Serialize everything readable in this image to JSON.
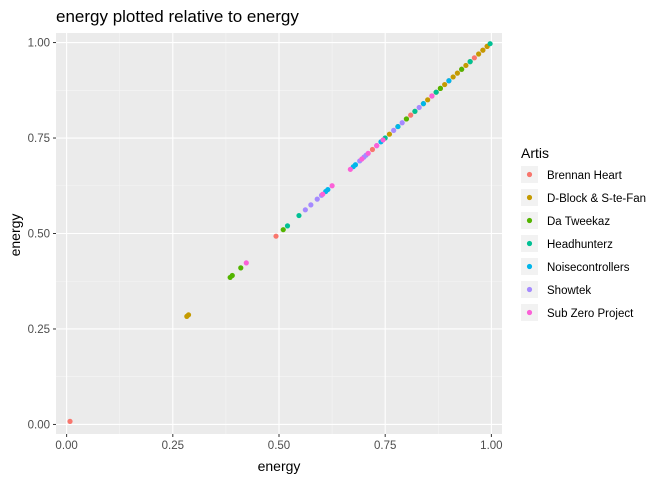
{
  "chart_data": {
    "type": "scatter",
    "title": "energy plotted relative to energy",
    "xlabel": "energy",
    "ylabel": "energy",
    "xlim": [
      -0.025,
      1.025
    ],
    "ylim": [
      -0.025,
      1.025
    ],
    "x_ticks": [
      0,
      0.25,
      0.5,
      0.75,
      1.0
    ],
    "x_tick_labels": [
      "0.00",
      "0.25",
      "0.50",
      "0.75",
      "1.00"
    ],
    "y_ticks": [
      0,
      0.25,
      0.5,
      0.75,
      1.0
    ],
    "y_tick_labels": [
      "0.00",
      "0.25",
      "0.50",
      "0.75",
      "1.00"
    ],
    "grid": true,
    "legend": {
      "title": "Artis",
      "position": "right"
    },
    "series": [
      {
        "name": "Brennan Heart",
        "color": "#F8766D",
        "x": [
          0.008,
          0.493,
          0.72,
          0.81,
          0.86,
          0.9,
          0.93,
          0.96,
          0.98,
          0.99
        ],
        "y": [
          0.008,
          0.493,
          0.72,
          0.81,
          0.86,
          0.9,
          0.93,
          0.96,
          0.98,
          0.99
        ]
      },
      {
        "name": "D-Block & S-te-Fan",
        "color": "#C49A00",
        "x": [
          0.283,
          0.287,
          0.76,
          0.78,
          0.8,
          0.82,
          0.84,
          0.85,
          0.87,
          0.88,
          0.89,
          0.91,
          0.92,
          0.94,
          0.95,
          0.97,
          0.98,
          0.99
        ],
        "y": [
          0.283,
          0.287,
          0.76,
          0.78,
          0.8,
          0.82,
          0.84,
          0.85,
          0.87,
          0.88,
          0.89,
          0.91,
          0.92,
          0.94,
          0.95,
          0.97,
          0.98,
          0.99
        ]
      },
      {
        "name": "Da Tweekaz",
        "color": "#53B400",
        "x": [
          0.385,
          0.39,
          0.41,
          0.51,
          0.8,
          0.88,
          0.93
        ],
        "y": [
          0.385,
          0.39,
          0.41,
          0.51,
          0.8,
          0.88,
          0.93
        ]
      },
      {
        "name": "Headhunterz",
        "color": "#00C094",
        "x": [
          0.52,
          0.547,
          0.75,
          0.82,
          0.87,
          0.95,
          0.997
        ],
        "y": [
          0.52,
          0.547,
          0.75,
          0.82,
          0.87,
          0.95,
          0.997
        ]
      },
      {
        "name": "Noisecontrollers",
        "color": "#00B6EB",
        "x": [
          0.61,
          0.615,
          0.675,
          0.68,
          0.74,
          0.78,
          0.84,
          0.9
        ],
        "y": [
          0.61,
          0.615,
          0.675,
          0.68,
          0.74,
          0.78,
          0.84,
          0.9
        ]
      },
      {
        "name": "Showtek",
        "color": "#A58AFF",
        "x": [
          0.562,
          0.575,
          0.59,
          0.6,
          0.69,
          0.7,
          0.705,
          0.73,
          0.77,
          0.79,
          0.83
        ],
        "y": [
          0.562,
          0.575,
          0.59,
          0.6,
          0.69,
          0.7,
          0.705,
          0.73,
          0.77,
          0.79,
          0.83
        ]
      },
      {
        "name": "Sub Zero Project",
        "color": "#FB61D7",
        "x": [
          0.423,
          0.603,
          0.625,
          0.668,
          0.695,
          0.71,
          0.73,
          0.745,
          0.86
        ],
        "y": [
          0.423,
          0.603,
          0.625,
          0.668,
          0.695,
          0.71,
          0.73,
          0.745,
          0.86
        ]
      }
    ],
    "colors": {
      "panel_background": "#EBEBEB",
      "grid_major": "#FFFFFF",
      "grid_minor": "#F5F5F5",
      "legend_key_background": "#F2F2F2"
    }
  }
}
